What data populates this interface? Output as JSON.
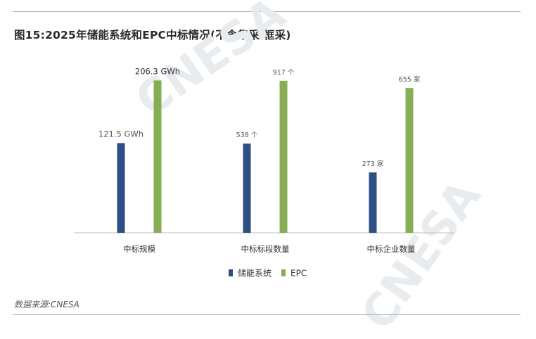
{
  "title": "图15:2025年储能系统和EPC中标情况(不含集采/框采)",
  "source": "数据来源:CNESA",
  "watermark": "CNESA",
  "colors": {
    "storage": "#2e4f86",
    "epc": "#86ae55",
    "axis": "#bfbfbf",
    "label": "#555555"
  },
  "chart_data": {
    "type": "bar",
    "categories": [
      "中标规模",
      "中标标段数量",
      "中标企业数量"
    ],
    "series": [
      {
        "name": "储能系统",
        "values": [
          121.5,
          538,
          273
        ],
        "labels": [
          "121.5 GWh",
          "538 个",
          "273 家"
        ]
      },
      {
        "name": "EPC",
        "values": [
          206.3,
          917,
          655
        ],
        "labels": [
          "206.3 GWh",
          "917 个",
          "655 家"
        ]
      }
    ],
    "per_category_max": [
      220,
      980,
      735
    ],
    "legend_position": "bottom",
    "grid": false
  }
}
